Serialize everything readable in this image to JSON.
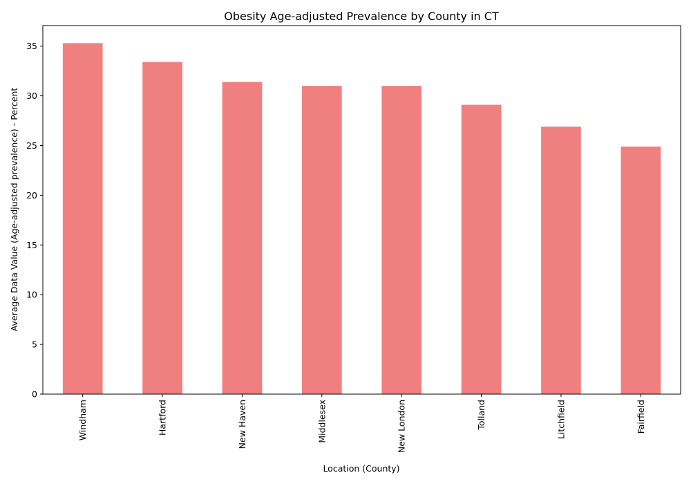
{
  "chart_data": {
    "type": "bar",
    "title": "Obesity Age-adjusted Prevalence by County in CT",
    "xlabel": "Location (County)",
    "ylabel": "Average Data Value (Age-adjusted prevalence) - Percent",
    "categories": [
      "Windham",
      "Hartford",
      "New Haven",
      "Middlesex",
      "New London",
      "Tolland",
      "Litchfield",
      "Fairfield"
    ],
    "values": [
      35.3,
      33.4,
      31.4,
      31.0,
      31.0,
      29.1,
      26.9,
      24.9
    ],
    "ylim": [
      0,
      37.065
    ],
    "yticks": [
      0,
      5,
      10,
      15,
      20,
      25,
      30,
      35
    ],
    "bar_color": "#f08080",
    "grid": false,
    "legend": "none"
  }
}
